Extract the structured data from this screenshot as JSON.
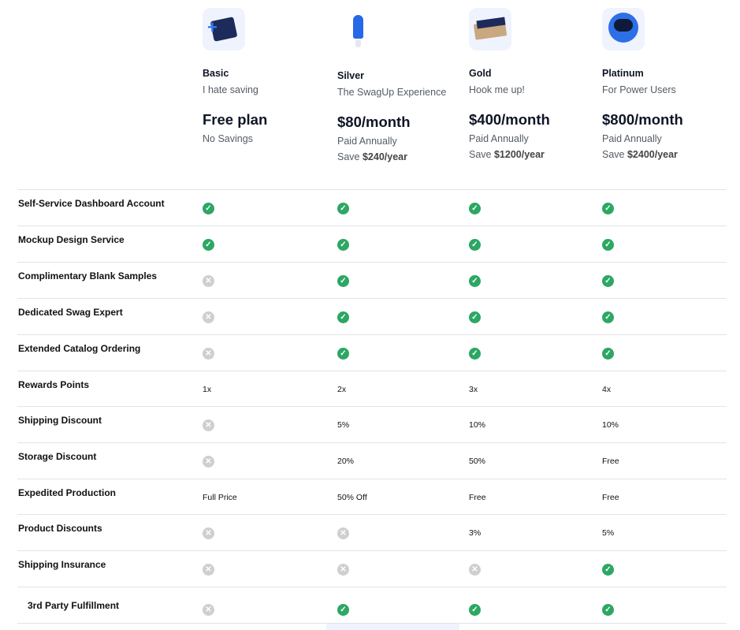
{
  "plans": [
    {
      "name": "Basic",
      "tagline": "I hate saving",
      "price": "Free plan",
      "line1": "No Savings",
      "save_prefix": "",
      "save_amount": "",
      "icon": "box-kit-icon"
    },
    {
      "name": "Silver",
      "tagline": "The SwagUp Experience",
      "price": "$80/month",
      "line1": "Paid Annually",
      "save_prefix": "Save ",
      "save_amount": "$240/year",
      "icon": "rocket-icon"
    },
    {
      "name": "Gold",
      "tagline": "Hook me up!",
      "price": "$400/month",
      "line1": "Paid Annually",
      "save_prefix": "Save ",
      "save_amount": "$1200/year",
      "icon": "gift-box-icon"
    },
    {
      "name": "Platinum",
      "tagline": "For Power Users",
      "price": "$800/month",
      "line1": "Paid Annually",
      "save_prefix": "Save ",
      "save_amount": "$2400/year",
      "icon": "astronaut-icon"
    }
  ],
  "features": [
    {
      "label": "Self-Service Dashboard Account",
      "values": [
        "check",
        "check",
        "check",
        "check"
      ]
    },
    {
      "label": "Mockup Design Service",
      "values": [
        "check",
        "check",
        "check",
        "check"
      ]
    },
    {
      "label": "Complimentary Blank Samples",
      "values": [
        "x",
        "check",
        "check",
        "check"
      ]
    },
    {
      "label": "Dedicated Swag Expert",
      "values": [
        "x",
        "check",
        "check",
        "check"
      ]
    },
    {
      "label": "Extended Catalog Ordering",
      "values": [
        "x",
        "check",
        "check",
        "check"
      ]
    },
    {
      "label": "Rewards Points",
      "values": [
        "1x",
        "2x",
        "3x",
        "4x"
      ]
    },
    {
      "label": "Shipping Discount",
      "values": [
        "x",
        "5%",
        "10%",
        "10%"
      ]
    },
    {
      "label": "Storage Discount",
      "values": [
        "x",
        "20%",
        "50%",
        "Free"
      ]
    },
    {
      "label": "Expedited Production",
      "values": [
        "Full Price",
        "50% Off",
        "Free",
        "Free"
      ]
    },
    {
      "label": "Product Discounts",
      "values": [
        "x",
        "x",
        "3%",
        "5%"
      ]
    },
    {
      "label": "Shipping Insurance",
      "values": [
        "x",
        "x",
        "x",
        "check"
      ]
    },
    {
      "label": "3rd Party Fulfillment",
      "values": [
        "x",
        "check",
        "check",
        "check"
      ]
    }
  ],
  "colors": {
    "check": "#2ca764",
    "x": "#cfcfcf",
    "accent_bg": "#eef3fd"
  }
}
